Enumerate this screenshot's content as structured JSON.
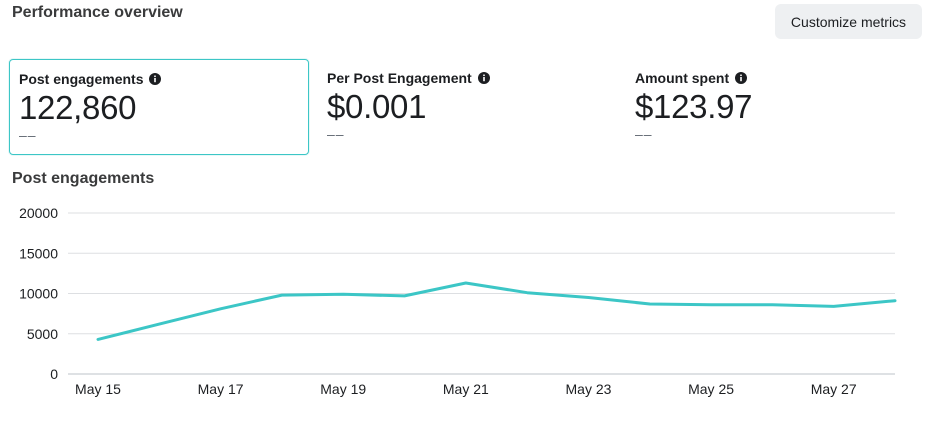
{
  "section_title": "Performance overview",
  "customize_button_label": "Customize metrics",
  "metrics": [
    {
      "label": "Post engagements",
      "value": "122,860",
      "change": "––",
      "selected": true
    },
    {
      "label": "Per Post Engagement",
      "value": "$0.001",
      "change": "––",
      "selected": false
    },
    {
      "label": "Amount spent",
      "value": "$123.97",
      "change": "––",
      "selected": false
    }
  ],
  "chart_title": "Post engagements",
  "colors": {
    "accent": "#3cc6c6",
    "grid": "#dddfe2"
  },
  "chart_data": {
    "type": "line",
    "x": [
      "May 15",
      "May 16",
      "May 17",
      "May 18",
      "May 19",
      "May 20",
      "May 21",
      "May 22",
      "May 23",
      "May 24",
      "May 25",
      "May 26",
      "May 27",
      "May 28"
    ],
    "x_tick_labels": [
      "May 15",
      "May 17",
      "May 19",
      "May 21",
      "May 23",
      "May 25",
      "May 27"
    ],
    "series": [
      {
        "values": [
          4300,
          6200,
          8100,
          9800,
          9900,
          9700,
          11300,
          10100,
          9500,
          8700,
          8600,
          8600,
          8400,
          9100
        ]
      }
    ],
    "y_ticks": [
      "0",
      "5000",
      "10000",
      "15000",
      "20000"
    ],
    "ylim": [
      0,
      20000
    ],
    "grid": true
  }
}
